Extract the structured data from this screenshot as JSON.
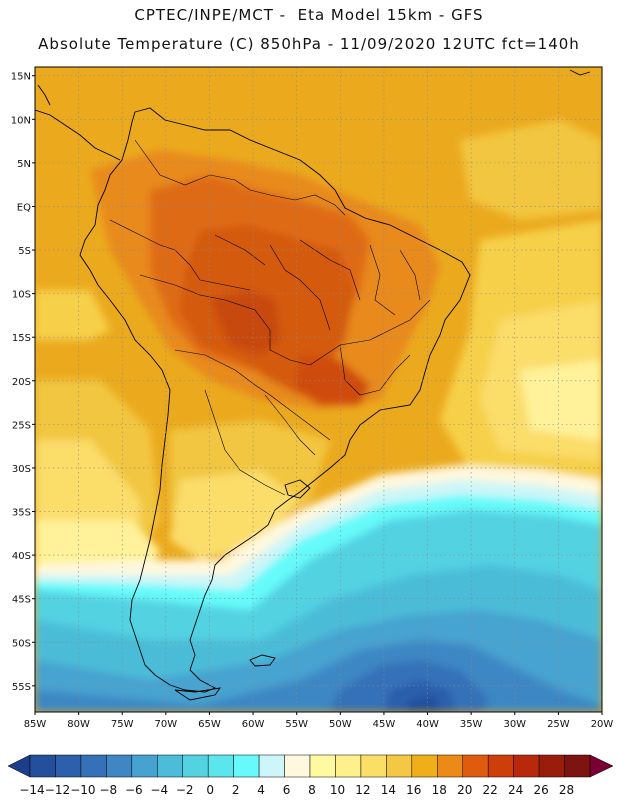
{
  "header": {
    "line1": "CPTEC/INPE/MCT -  Eta Model 15km - GFS",
    "line2": "Absolute Temperature (C) 850hPa - 11/09/2020 12UTC fct=140h"
  },
  "map": {
    "lat_labels": [
      "15N",
      "10N",
      "5N",
      "EQ",
      "5S",
      "10S",
      "15S",
      "20S",
      "25S",
      "30S",
      "35S",
      "40S",
      "45S",
      "50S",
      "55S"
    ],
    "lat_values": [
      15,
      10,
      5,
      0,
      -5,
      -10,
      -15,
      -20,
      -25,
      -30,
      -35,
      -40,
      -45,
      -50,
      -55
    ],
    "lon_labels": [
      "85W",
      "80W",
      "75W",
      "70W",
      "65W",
      "60W",
      "55W",
      "50W",
      "45W",
      "40W",
      "35W",
      "30W",
      "25W",
      "20W"
    ],
    "lon_values": [
      -85,
      -80,
      -75,
      -70,
      -65,
      -60,
      -55,
      -50,
      -45,
      -40,
      -35,
      -30,
      -25,
      -20
    ],
    "extent": {
      "lon_min": -85,
      "lon_max": -20,
      "lat_min": -58,
      "lat_max": 16
    }
  },
  "colorbar": {
    "labels": [
      "-14",
      "-12",
      "-10",
      "-8",
      "-6",
      "-4",
      "-2",
      "0",
      "2",
      "4",
      "6",
      "8",
      "10",
      "12",
      "14",
      "16",
      "18",
      "20",
      "22",
      "24",
      "26",
      "28"
    ],
    "colors": [
      "#1c3f8c",
      "#234f9c",
      "#2c5fac",
      "#3571b8",
      "#3e87c4",
      "#46a3d0",
      "#4cbcd8",
      "#53d2e2",
      "#5ae6ec",
      "#66fafa",
      "#ccf6f8",
      "#fff8de",
      "#fffaa0",
      "#fef08a",
      "#fbde66",
      "#f4c842",
      "#f0ae18",
      "#ec8a18",
      "#df5c0e",
      "#cd3e0a",
      "#b8280a",
      "#9a1c0a",
      "#7e1410",
      "#7a0034"
    ]
  }
}
